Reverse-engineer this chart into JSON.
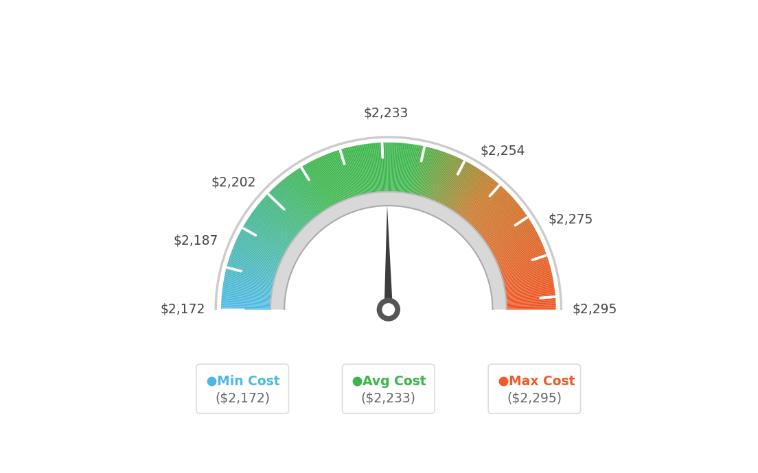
{
  "min_val": 2172,
  "avg_val": 2233,
  "max_val": 2295,
  "tick_values": [
    2172,
    2187,
    2202,
    2233,
    2254,
    2275,
    2295
  ],
  "tick_labels": [
    "$2,172",
    "$2,187",
    "$2,202",
    "$2,233",
    "$2,254",
    "$2,275",
    "$2,295"
  ],
  "legend": [
    {
      "label": "Min Cost",
      "value": "($2,172)",
      "color": "#4db8e8"
    },
    {
      "label": "Avg Cost",
      "value": "($2,233)",
      "color": "#3ab54a"
    },
    {
      "label": "Max Cost",
      "value": "($2,295)",
      "color": "#f05a28"
    }
  ],
  "background_color": "#ffffff",
  "outer_r": 0.78,
  "inner_r": 0.55,
  "needle_value": 2233,
  "color_stops": [
    [
      0.0,
      [
        77,
        184,
        232
      ]
    ],
    [
      0.35,
      [
        58,
        181,
        74
      ]
    ],
    [
      0.55,
      [
        58,
        181,
        74
      ]
    ],
    [
      0.72,
      [
        200,
        120,
        40
      ]
    ],
    [
      1.0,
      [
        240,
        80,
        30
      ]
    ]
  ]
}
